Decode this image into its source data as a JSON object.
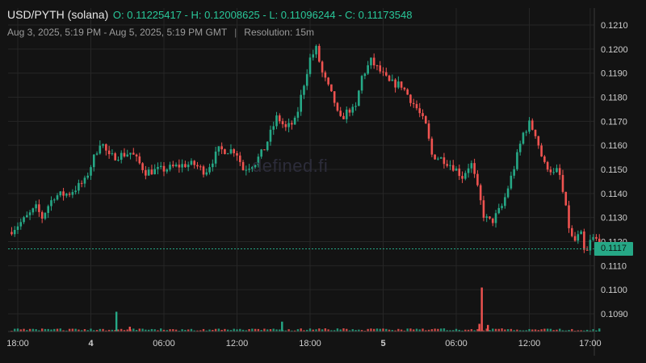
{
  "header": {
    "pair": "USD/PYTH (solana)",
    "ohlc": "O: 0.11225417 - H: 0.12008625 - L: 0.11096244 - C: 0.11173548",
    "range": "Aug 3, 2025, 5:19 PM - Aug 5, 2025, 5:19 PM GMT",
    "separator": "|",
    "resolution": "Resolution: 15m"
  },
  "watermark": "defined.fi",
  "last_price_label": "0.1117",
  "colors": {
    "up": "#26a886",
    "down": "#ef5350",
    "background": "#131313",
    "grid": "#262626",
    "axis_text": "#cfcfcf",
    "price_line": "#26a886"
  },
  "chart_data": {
    "type": "candlestick",
    "title": "USD/PYTH (solana)",
    "ylim": [
      0.1083,
      0.1214
    ],
    "y_ticks": [
      "0.1210",
      "0.1200",
      "0.1190",
      "0.1180",
      "0.1170",
      "0.1160",
      "0.1150",
      "0.1140",
      "0.1130",
      "0.1120",
      "0.1110",
      "0.1100",
      "0.1090"
    ],
    "x_ticks": [
      {
        "label": "18:00",
        "t": 0
      },
      {
        "label": "4",
        "t": 6,
        "bold": true
      },
      {
        "label": "06:00",
        "t": 12
      },
      {
        "label": "12:00",
        "t": 18
      },
      {
        "label": "18:00",
        "t": 24
      },
      {
        "label": "5",
        "t": 30,
        "bold": true
      },
      {
        "label": "06:00",
        "t": 36
      },
      {
        "label": "12:00",
        "t": 42
      },
      {
        "label": "17:00",
        "t": 47
      }
    ],
    "grid": true,
    "last_price": 0.1117,
    "price_keyframes": [
      [
        -0.7,
        0.1124
      ],
      [
        0.5,
        0.1129
      ],
      [
        1.5,
        0.1134
      ],
      [
        2.0,
        0.113
      ],
      [
        2.5,
        0.1135
      ],
      [
        3.0,
        0.1139
      ],
      [
        4.2,
        0.114
      ],
      [
        5.5,
        0.1145
      ],
      [
        6.8,
        0.1162
      ],
      [
        7.5,
        0.1155
      ],
      [
        8.5,
        0.1156
      ],
      [
        9.3,
        0.1157
      ],
      [
        10.5,
        0.1149
      ],
      [
        12.0,
        0.115
      ],
      [
        13.7,
        0.1152
      ],
      [
        14.5,
        0.1152
      ],
      [
        15.4,
        0.1149
      ],
      [
        16.5,
        0.1158
      ],
      [
        17.9,
        0.1158
      ],
      [
        18.5,
        0.115
      ],
      [
        19.5,
        0.1153
      ],
      [
        20.2,
        0.1158
      ],
      [
        21.3,
        0.1172
      ],
      [
        22.0,
        0.1167
      ],
      [
        22.8,
        0.117
      ],
      [
        23.6,
        0.1188
      ],
      [
        24.0,
        0.1196
      ],
      [
        24.5,
        0.12
      ],
      [
        25.0,
        0.119
      ],
      [
        26.0,
        0.1178
      ],
      [
        26.4,
        0.117
      ],
      [
        27.2,
        0.1175
      ],
      [
        27.7,
        0.1174
      ],
      [
        28.2,
        0.1188
      ],
      [
        29.0,
        0.1195
      ],
      [
        29.7,
        0.1191
      ],
      [
        30.5,
        0.1186
      ],
      [
        31.5,
        0.1185
      ],
      [
        32.4,
        0.1178
      ],
      [
        32.8,
        0.1175
      ],
      [
        33.5,
        0.1168
      ],
      [
        34.0,
        0.1156
      ],
      [
        35.0,
        0.1154
      ],
      [
        35.8,
        0.1151
      ],
      [
        36.5,
        0.1147
      ],
      [
        37.2,
        0.1153
      ],
      [
        37.6,
        0.1145
      ],
      [
        38.3,
        0.113
      ],
      [
        38.9,
        0.1128
      ],
      [
        39.8,
        0.1135
      ],
      [
        40.7,
        0.115
      ],
      [
        41.5,
        0.1165
      ],
      [
        42.0,
        0.1169
      ],
      [
        42.5,
        0.1165
      ],
      [
        43.2,
        0.1152
      ],
      [
        43.6,
        0.1151
      ],
      [
        44.0,
        0.1148
      ],
      [
        44.4,
        0.115
      ],
      [
        44.8,
        0.1139
      ],
      [
        45.4,
        0.1122
      ],
      [
        45.8,
        0.112
      ],
      [
        46.2,
        0.1124
      ],
      [
        46.6,
        0.1113
      ],
      [
        47.0,
        0.112
      ],
      [
        47.4,
        0.1122
      ],
      [
        47.8,
        0.1117
      ]
    ],
    "volume_spikes": [
      {
        "t": 8.1,
        "v": 0.9
      },
      {
        "t": 9.2,
        "v": 0.22
      },
      {
        "t": 21.7,
        "v": 0.45
      },
      {
        "t": 38.1,
        "v": 2.0
      },
      {
        "t": 38.6,
        "v": 0.3
      },
      {
        "t": 37.9,
        "v": 0.35
      }
    ],
    "volume_max_units": 2.2
  }
}
